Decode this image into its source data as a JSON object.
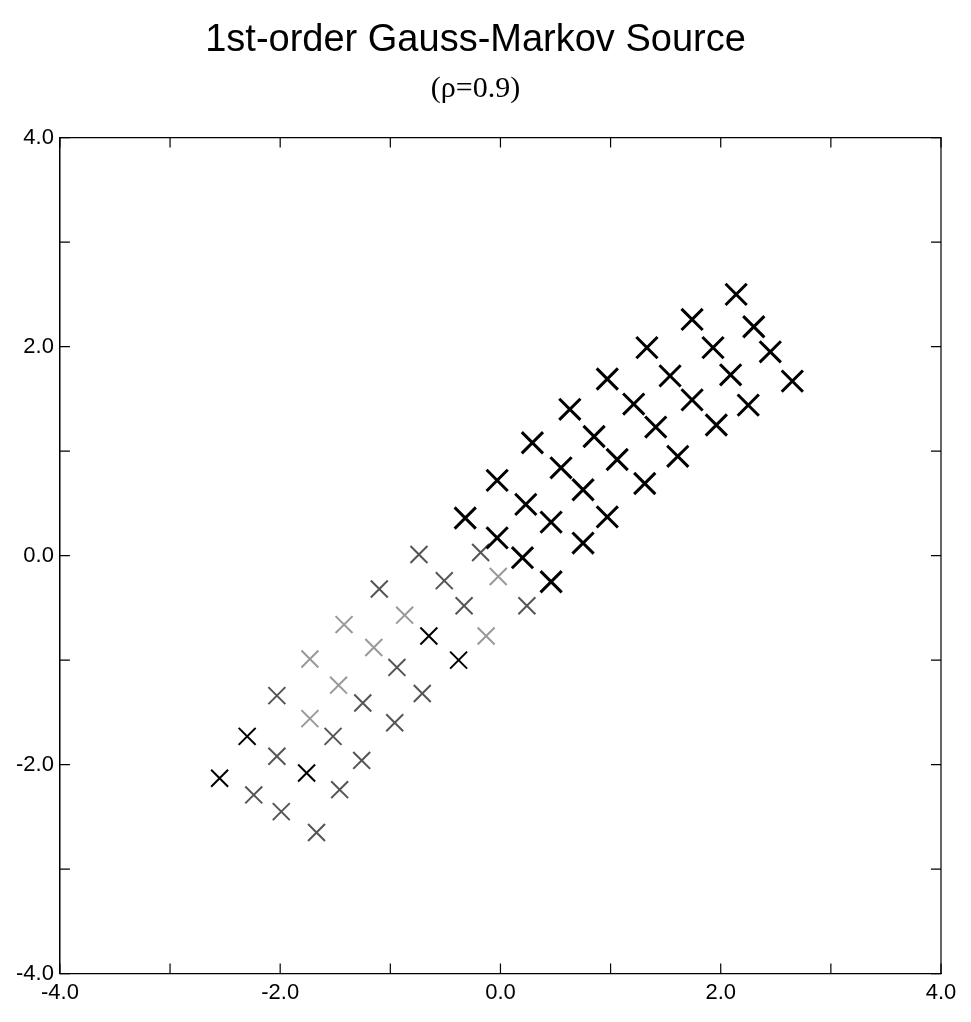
{
  "chart_data": {
    "type": "scatter",
    "title": "1st-order Gauss-Markov Source",
    "subtitle": "(ρ=0.9)",
    "xlim": [
      -4,
      4
    ],
    "ylim": [
      -4,
      4
    ],
    "xticks": [
      {
        "value": -4,
        "label": "-4.0"
      },
      {
        "value": -3,
        "label": null
      },
      {
        "value": -2,
        "label": "-2.0"
      },
      {
        "value": -1,
        "label": null
      },
      {
        "value": 0,
        "label": "0.0"
      },
      {
        "value": 1,
        "label": null
      },
      {
        "value": 2,
        "label": "2.0"
      },
      {
        "value": 3,
        "label": null
      },
      {
        "value": 4,
        "label": "4.0"
      }
    ],
    "yticks": [
      {
        "value": -4,
        "label": "-4.0"
      },
      {
        "value": -3,
        "label": null
      },
      {
        "value": -2,
        "label": "-2.0"
      },
      {
        "value": -1,
        "label": null
      },
      {
        "value": 0,
        "label": "0.0"
      },
      {
        "value": 1,
        "label": null
      },
      {
        "value": 2,
        "label": "2.0"
      },
      {
        "value": 3,
        "label": null
      },
      {
        "value": 4,
        "label": "4.0"
      }
    ],
    "grid": false,
    "legend": false,
    "series": [
      {
        "marker": "cross",
        "color": "#000000",
        "x": [
          2.14,
          1.74,
          2.3,
          1.33,
          1.93,
          2.45,
          0.97,
          1.54,
          2.09,
          2.65,
          0.63,
          1.21,
          1.74,
          2.25,
          0.29,
          0.85,
          1.41,
          1.96,
          -0.03,
          0.55,
          1.06,
          1.61,
          -0.32,
          0.23,
          0.75,
          1.31,
          -0.03,
          0.46,
          0.97,
          0.2,
          0.75,
          0.46
        ],
        "values": [
          2.5,
          2.26,
          2.19,
          1.99,
          1.99,
          1.95,
          1.69,
          1.72,
          1.73,
          1.67,
          1.4,
          1.45,
          1.49,
          1.44,
          1.08,
          1.14,
          1.23,
          1.25,
          0.72,
          0.84,
          0.92,
          0.95,
          0.36,
          0.49,
          0.63,
          0.69,
          0.17,
          0.32,
          0.37,
          -0.02,
          0.12,
          -0.25
        ]
      },
      {
        "x": [
          -0.65,
          -0.38,
          -2.3,
          -1.76,
          -2.55,
          -0.74,
          -0.51,
          -0.94,
          -0.71,
          -0.96,
          -1.52,
          -1.26,
          -1.46,
          -1.99,
          -1.42,
          -1.1,
          -0.33,
          0.24,
          -0.87,
          -0.18,
          -0.02,
          -0.13,
          -1.15,
          -1.73,
          -1.47,
          -1.25,
          -2.03,
          -1.73,
          -2.03,
          -2.24,
          -1.67
        ],
        "values": [
          -0.77,
          -1.0,
          -1.73,
          -2.08,
          -2.13,
          0.01,
          -0.24,
          -1.07,
          -1.32,
          -1.6,
          -1.73,
          -1.96,
          -2.24,
          -2.45,
          -0.66,
          -0.32,
          -0.48,
          -0.48,
          -0.57,
          0.03,
          -0.2,
          -0.77,
          -0.88,
          -0.99,
          -1.24,
          -1.41,
          -1.34,
          -1.56,
          -1.92,
          -2.29,
          -2.65
        ],
        "colors": [
          "#000000",
          "#000000",
          "#000000",
          "#000000",
          "#000000",
          "#555555",
          "#555555",
          "#555555",
          "#555555",
          "#555555",
          "#555555",
          "#555555",
          "#555555",
          "#555555",
          "#999999",
          "#555555",
          "#555555",
          "#555555",
          "#999999",
          "#555555",
          "#999999",
          "#999999",
          "#999999",
          "#999999",
          "#999999",
          "#555555",
          "#555555",
          "#999999",
          "#555555",
          "#555555",
          "#555555"
        ]
      }
    ]
  }
}
